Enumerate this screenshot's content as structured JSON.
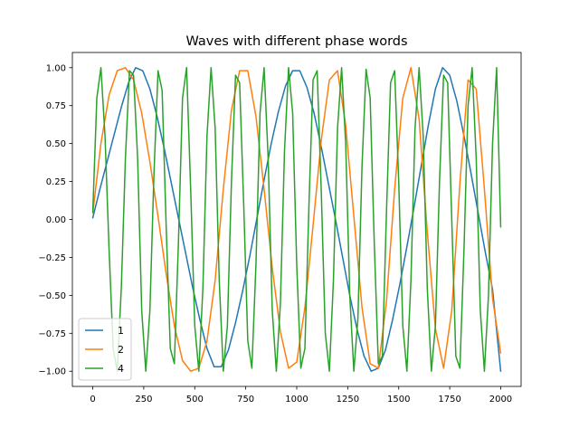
{
  "chart_data": {
    "type": "line",
    "title": "Waves with different phase words",
    "xlabel": "",
    "ylabel": "",
    "xlim": [
      -100,
      2100
    ],
    "ylim": [
      -1.1,
      1.1
    ],
    "xticks": [
      0,
      250,
      500,
      750,
      1000,
      1250,
      1500,
      1750,
      2000
    ],
    "yticks": [
      -1.0,
      -0.75,
      -0.5,
      -0.25,
      0.0,
      0.25,
      0.5,
      0.75,
      1.0
    ],
    "xtick_labels": [
      "0",
      "250",
      "500",
      "750",
      "1000",
      "1250",
      "1500",
      "1750",
      "2000"
    ],
    "ytick_labels": [
      "−1.00",
      "−0.75",
      "−0.50",
      "−0.25",
      "0.00",
      "0.25",
      "0.50",
      "0.75",
      "1.00"
    ],
    "grid": false,
    "legend_position": "lower-left",
    "series": [
      {
        "name": "1",
        "color": "#1f77b4",
        "x": [
          0,
          35,
          70,
          105,
          140,
          175,
          210,
          245,
          280,
          315,
          350,
          385,
          420,
          455,
          490,
          525,
          560,
          595,
          630,
          665,
          700,
          735,
          770,
          805,
          840,
          875,
          910,
          945,
          980,
          1015,
          1050,
          1085,
          1120,
          1155,
          1190,
          1225,
          1260,
          1295,
          1330,
          1365,
          1400,
          1435,
          1470,
          1505,
          1540,
          1575,
          1610,
          1645,
          1680,
          1715,
          1750,
          1785,
          1820,
          1855,
          1890,
          1925,
          1960,
          2000
        ],
        "y": [
          0.01,
          0.2,
          0.38,
          0.56,
          0.74,
          0.9,
          1.0,
          0.98,
          0.86,
          0.68,
          0.47,
          0.24,
          0.01,
          -0.22,
          -0.45,
          -0.66,
          -0.85,
          -0.97,
          -0.97,
          -0.86,
          -0.68,
          -0.47,
          -0.24,
          0.01,
          0.26,
          0.5,
          0.71,
          0.88,
          0.98,
          0.98,
          0.87,
          0.7,
          0.48,
          0.24,
          0.0,
          -0.25,
          -0.5,
          -0.72,
          -0.9,
          -1.0,
          -0.98,
          -0.86,
          -0.66,
          -0.43,
          -0.18,
          0.08,
          0.35,
          0.62,
          0.86,
          1.0,
          0.95,
          0.78,
          0.55,
          0.3,
          0.04,
          -0.22,
          -0.46,
          -1.0
        ]
      },
      {
        "name": "2",
        "color": "#ff7f0e",
        "x": [
          0,
          40,
          80,
          120,
          160,
          200,
          240,
          280,
          320,
          360,
          400,
          440,
          480,
          520,
          560,
          600,
          640,
          680,
          720,
          760,
          800,
          840,
          880,
          920,
          960,
          1000,
          1040,
          1080,
          1120,
          1160,
          1200,
          1240,
          1280,
          1320,
          1360,
          1400,
          1440,
          1480,
          1520,
          1560,
          1600,
          1640,
          1680,
          1720,
          1760,
          1800,
          1840,
          1880,
          1920,
          1960,
          2000
        ],
        "y": [
          0.04,
          0.5,
          0.82,
          0.98,
          1.0,
          0.92,
          0.7,
          0.38,
          0.02,
          -0.36,
          -0.7,
          -0.93,
          -1.0,
          -0.98,
          -0.8,
          -0.4,
          0.2,
          0.72,
          0.98,
          0.98,
          0.68,
          0.2,
          -0.32,
          -0.74,
          -0.98,
          -0.94,
          -0.58,
          -0.04,
          0.52,
          0.92,
          0.98,
          0.62,
          0.02,
          -0.58,
          -0.95,
          -0.98,
          -0.54,
          0.2,
          0.8,
          1.0,
          0.66,
          -0.08,
          -0.72,
          -0.98,
          -0.6,
          0.24,
          0.92,
          0.86,
          0.2,
          -0.52,
          -0.88
        ]
      },
      {
        "name": "4",
        "color": "#2ca02c",
        "x": [
          0,
          20,
          40,
          60,
          80,
          100,
          120,
          140,
          160,
          180,
          200,
          220,
          240,
          260,
          280,
          300,
          320,
          340,
          360,
          380,
          400,
          420,
          440,
          460,
          480,
          500,
          520,
          540,
          560,
          580,
          600,
          620,
          640,
          660,
          680,
          700,
          720,
          740,
          760,
          780,
          800,
          820,
          840,
          860,
          880,
          900,
          920,
          940,
          960,
          980,
          1000,
          1020,
          1040,
          1060,
          1080,
          1100,
          1120,
          1140,
          1160,
          1180,
          1200,
          1220,
          1240,
          1260,
          1280,
          1300,
          1320,
          1340,
          1360,
          1380,
          1400,
          1420,
          1440,
          1460,
          1480,
          1500,
          1520,
          1540,
          1560,
          1580,
          1600,
          1620,
          1640,
          1660,
          1680,
          1700,
          1720,
          1740,
          1760,
          1780,
          1800,
          1820,
          1840,
          1860,
          1880,
          1900,
          1920,
          1940,
          1960,
          1980,
          2000
        ],
        "y": [
          0.05,
          0.8,
          1.0,
          0.55,
          -0.2,
          -0.85,
          -1.0,
          -0.45,
          0.4,
          0.98,
          0.95,
          0.4,
          -0.6,
          -1.0,
          -0.6,
          0.3,
          0.98,
          0.85,
          -0.05,
          -0.85,
          -0.95,
          -0.15,
          0.8,
          1.0,
          0.2,
          -0.7,
          -1.0,
          -0.45,
          0.55,
          1.0,
          0.6,
          -0.4,
          -1.0,
          -0.7,
          0.25,
          0.95,
          0.9,
          0.1,
          -0.8,
          -0.98,
          -0.3,
          0.7,
          1.0,
          0.4,
          -0.6,
          -1.0,
          -0.55,
          0.45,
          1.0,
          0.7,
          -0.3,
          -0.98,
          -0.85,
          0.1,
          0.92,
          0.98,
          0.2,
          -0.75,
          -1.0,
          -0.4,
          0.6,
          1.0,
          0.5,
          -0.5,
          -1.0,
          -0.65,
          0.35,
          0.99,
          0.8,
          -0.15,
          -0.95,
          -0.9,
          0.05,
          0.9,
          0.98,
          0.25,
          -0.7,
          -1.0,
          -0.4,
          0.6,
          1.0,
          0.55,
          -0.45,
          -1.0,
          -0.7,
          0.25,
          0.95,
          0.9,
          0.0,
          -0.9,
          -0.98,
          -0.2,
          0.75,
          1.0,
          0.4,
          -0.6,
          -1.0,
          -0.5,
          0.5,
          1.0,
          -0.05
        ]
      }
    ]
  }
}
